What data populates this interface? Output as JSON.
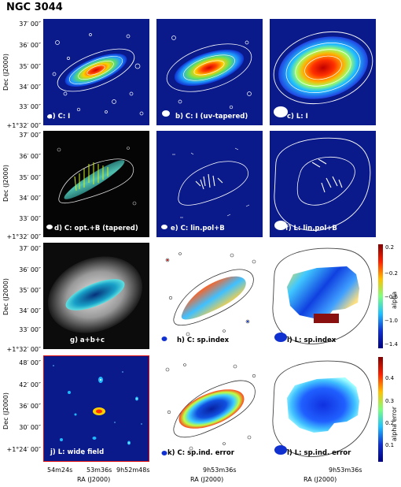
{
  "figure": {
    "title": "NGC 3044",
    "rows": [
      {
        "yticks": [
          "37′ 00″",
          "36′ 00″",
          "35′ 00″",
          "34′ 00″",
          "33′ 00″",
          "+1°32′ 00″"
        ],
        "ylabel": "Dec (J2000)"
      },
      {
        "yticks": [
          "37′ 00″",
          "36′ 00″",
          "35′ 00″",
          "34′ 00″",
          "33′ 00″",
          "+1°32′ 00″"
        ],
        "ylabel": "Dec (J2000)"
      },
      {
        "yticks": [
          "37′ 00″",
          "36′ 00″",
          "35′ 00″",
          "34′ 00″",
          "33′ 00″",
          "+1°32′ 00″"
        ],
        "ylabel": "Dec (J2000)"
      },
      {
        "yticks": [
          "48′ 00″",
          "42′ 00″",
          "36′ 00″",
          "30′ 00″",
          "+1°24′ 00″"
        ],
        "ylabel": "Dec (J2000)"
      }
    ],
    "xaxis": {
      "col1": [
        "54m24s",
        "53m36s",
        "9h52m48s"
      ],
      "col2": [
        "9h53m36s"
      ],
      "col3": [
        "9h53m36s"
      ],
      "xlabel": "RA (J2000)"
    },
    "panels": {
      "a": "a) C: I",
      "b": "b) C: I (uv-tapered)",
      "c": "c) L: I",
      "d": "d) C: opt.+B (tapered)",
      "e": "e) C: lin.pol+B",
      "f": "f) L: lin.pol+B",
      "g": "g) a+b+c",
      "h": "h) C: sp.index",
      "i": "i) L: sp.index",
      "j": "j) L: wide field",
      "k": "k) C: sp.ind. error",
      "l": "l) L: sp.ind. error"
    },
    "colorbars": {
      "alpha": {
        "label": "alpha",
        "ticks": [
          "0.2",
          "−0.2",
          "−0.6",
          "−1.0",
          "−1.4"
        ]
      },
      "alpha_error": {
        "label": "alpha error",
        "ticks": [
          "0.4",
          "0.3",
          "0.2",
          "0.1"
        ]
      }
    },
    "colors": {
      "navy": "#0a1a8a",
      "axis_red": "#e01010",
      "white": "#ffffff"
    }
  }
}
